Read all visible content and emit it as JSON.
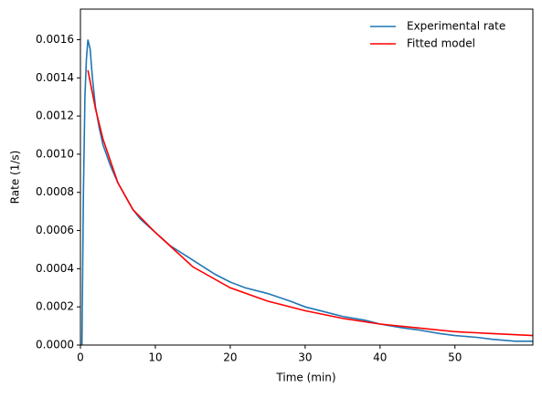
{
  "chart_data": {
    "type": "line",
    "xlabel": "Time (min)",
    "ylabel": "Rate (1/s)",
    "xlim": [
      0,
      60.4
    ],
    "xticks": [
      0,
      10,
      20,
      30,
      40,
      50
    ],
    "ylim": [
      0,
      0.00176
    ],
    "yticks": [
      {
        "value": 0,
        "label": "0.0000"
      },
      {
        "value": 0.0002,
        "label": "0.0002"
      },
      {
        "value": 0.0004,
        "label": "0.0004"
      },
      {
        "value": 0.0006,
        "label": "0.0006"
      },
      {
        "value": 0.0008,
        "label": "0.0008"
      },
      {
        "value": 0.001,
        "label": "0.0010"
      },
      {
        "value": 0.0012,
        "label": "0.0012"
      },
      {
        "value": 0.0014,
        "label": "0.0014"
      },
      {
        "value": 0.0016,
        "label": "0.0016"
      }
    ],
    "legend": "upper right",
    "series": [
      {
        "name": "Experimental rate",
        "color": "#1f77b4",
        "x": [
          0,
          0.2,
          0.4,
          0.6,
          0.8,
          1.0,
          1.3,
          1.6,
          2,
          2.5,
          3,
          4,
          5,
          6,
          7,
          8,
          10,
          12,
          14,
          16,
          18,
          20,
          22,
          25,
          28,
          30,
          33,
          35,
          38,
          40,
          43,
          45,
          48,
          50,
          53,
          55,
          58,
          60.4
        ],
        "values": [
          0,
          0,
          0.0008,
          0.0013,
          0.0015,
          0.0016,
          0.00155,
          0.0014,
          0.00125,
          0.00114,
          0.00105,
          0.00094,
          0.00085,
          0.00078,
          0.00071,
          0.00066,
          0.00059,
          0.00052,
          0.00047,
          0.00042,
          0.00037,
          0.00033,
          0.0003,
          0.00027,
          0.00023,
          0.0002,
          0.00017,
          0.00015,
          0.00013,
          0.00011,
          9e-05,
          8e-05,
          6e-05,
          5e-05,
          4e-05,
          3e-05,
          2e-05,
          2e-05
        ]
      },
      {
        "name": "Fitted model",
        "color": "#ff0000",
        "x": [
          1,
          2,
          3,
          5,
          7,
          10,
          15,
          20,
          25,
          30,
          35,
          40,
          45,
          50,
          55,
          60.4
        ],
        "values": [
          0.00144,
          0.00124,
          0.00108,
          0.00085,
          0.00071,
          0.00059,
          0.00041,
          0.0003,
          0.00023,
          0.00018,
          0.00014,
          0.00011,
          9e-05,
          7e-05,
          6e-05,
          5e-05
        ]
      }
    ]
  }
}
